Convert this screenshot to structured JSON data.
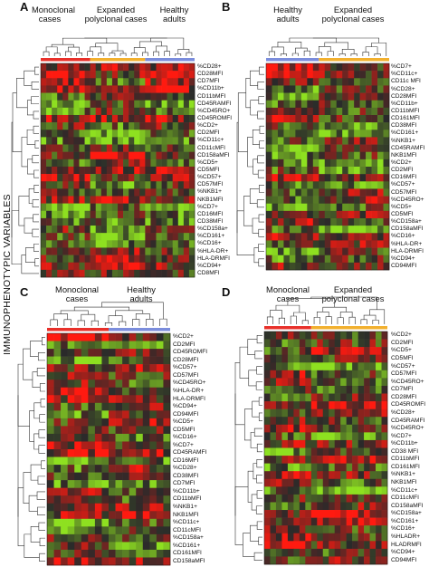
{
  "figure": {
    "y_axis_label": "IMMUNOPHENOTYPIC VARIABLES",
    "colors": {
      "monoclonal": "#e8302a",
      "polyclonal": "#f2b02e",
      "healthy": "#7b8ddc",
      "heat_low": "#8ee020",
      "heat_mid": "#2a2a2a",
      "heat_high": "#ff1a10"
    }
  },
  "chart_data": [
    {
      "type": "heatmap",
      "panel": "A",
      "groups": [
        {
          "label": "Monoclonal cases",
          "color": "monoclonal",
          "columns": 9
        },
        {
          "label": "Expanded polyclonal cases",
          "color": "polyclonal",
          "columns": 10
        },
        {
          "label": "Healthy adults",
          "color": "healthy",
          "columns": 9
        }
      ],
      "rows": [
        "%CD28+",
        "CD28MFI",
        "CD7MFI",
        "%CD11b+",
        "CD11bMFI",
        "CD45RAMFI",
        "%CD45RO+",
        "CD45ROMFI",
        "%CD2+",
        "CD2MFI",
        "%CD11c+",
        "CD11cMFI",
        "CD158aMFI",
        "%CD5+",
        "CD5MFI",
        "%CD57+",
        "CD57MFI",
        "%NKB1+",
        "NKB1MFI",
        "%CD7+",
        "CD16MFI",
        "CD38MFI",
        "%CD158a+",
        "%CD161+",
        "%CD16+",
        "%HLA-DR+",
        "HLA-DRMFI",
        "%CD94+",
        "CD8MFI"
      ]
    },
    {
      "type": "heatmap",
      "panel": "B",
      "groups": [
        {
          "label": "Healthy adults",
          "color": "healthy",
          "columns": 9
        },
        {
          "label": "Expanded polyclonal cases",
          "color": "polyclonal",
          "columns": 12
        }
      ],
      "rows": [
        "%CD7+",
        "%CD11c+",
        "CD11c MFI",
        "%CD28+",
        "CD28MFI",
        "%CD11b+",
        "CD11bMFI",
        "CD161MFI",
        "CD38MFI",
        "%CD161+",
        "%NKB1+",
        "CD45RAMFI",
        "NKB1MFI",
        "%CD2+",
        "CD2MFI",
        "CD16MFI",
        "%CD57+",
        "CD57MFI",
        "%CD45RO+",
        "%CD5+",
        "CD5MFI",
        "%CD158a+",
        "CD158aMFI",
        "%CD16+",
        "%HLA-DR+",
        "HLA-DRMFI",
        "%CD94+",
        "CD94MFI"
      ]
    },
    {
      "type": "heatmap",
      "panel": "C",
      "groups": [
        {
          "label": "Monoclonal cases",
          "color": "monoclonal",
          "columns": 9
        },
        {
          "label": "Healthy adults",
          "color": "healthy",
          "columns": 9
        }
      ],
      "rows": [
        "%CD2+",
        "CD2MFI",
        "CD45ROMFI",
        "CD28MFI",
        "%CD57+",
        "CD57MFI",
        "%CD45RO+",
        "%HLA-DR+",
        "HLA-DRMFI",
        "%CD94+",
        "CD94MFI",
        "%CD5+",
        "CD5MFI",
        "%CD16+",
        "%CD7+",
        "CD45RAMFI",
        "CD16MFI",
        "%CD28+",
        "CD38MFI",
        "CD7MFI",
        "%CD11b+",
        "CD11bMFI",
        "%NKB1+",
        "NKB1MFI",
        "%CD11c+",
        "CD11cMFI",
        "%CD158a+",
        "%CD161+",
        "CD161MFI",
        "CD158aMFI"
      ]
    },
    {
      "type": "heatmap",
      "panel": "D",
      "groups": [
        {
          "label": "Monoclonal cases",
          "color": "monoclonal",
          "columns": 8
        },
        {
          "label": "Expanded polyclonal cases",
          "color": "polyclonal",
          "columns": 13
        }
      ],
      "rows": [
        "%CD2+",
        "CD2MFI",
        "%CD5+",
        "CD5MFI",
        "%CD57+",
        "CD57MFI",
        "%CD45RO+",
        "CD7MFI",
        "CD28MFI",
        "CD45ROMFI",
        "%CD28+",
        "CD45RAMFI",
        "%CD45RO+",
        "%CD7+",
        "%CD11b+",
        "CD38 MFI",
        "CD11bMFI",
        "CD161MFI",
        "%NKB1+",
        "NKB1MFI",
        "%CD11c+",
        "CD11cMFI",
        "CD158aMFI",
        "%CD158a+",
        "%CD161+",
        "%CD16+",
        "%HLADR+",
        "HLADRMFI",
        "%CD94+",
        "CD94MFI"
      ]
    }
  ]
}
